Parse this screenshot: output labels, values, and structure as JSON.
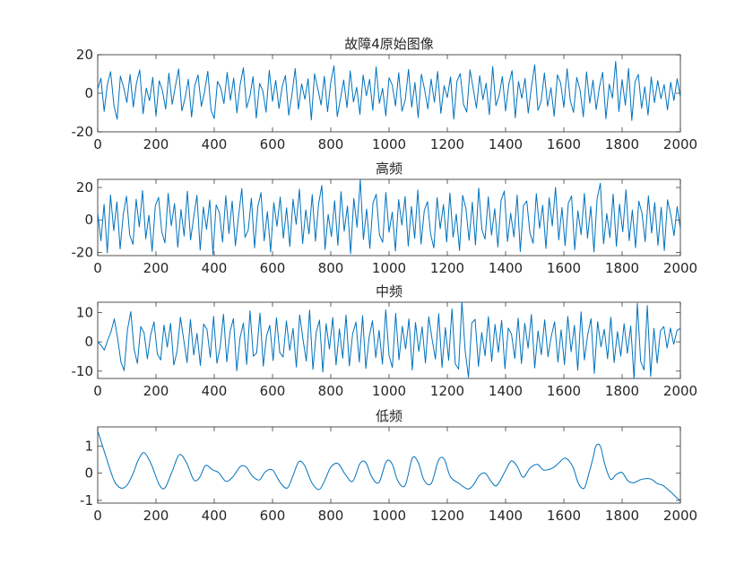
{
  "colors": {
    "line": "#0072BD",
    "axes": "#262626",
    "background": "#ffffff"
  },
  "chart_data": [
    {
      "type": "line",
      "title": "故障4原始图像",
      "xlabel": "",
      "ylabel": "",
      "xlim": [
        0,
        2000
      ],
      "ylim": [
        -20,
        20
      ],
      "xticks": [
        0,
        200,
        400,
        600,
        800,
        1000,
        1200,
        1400,
        1600,
        1800,
        2000
      ],
      "yticks": [
        -20,
        0,
        20
      ],
      "xtick_labels": [
        "0",
        "200",
        "400",
        "600",
        "800",
        "1000",
        "1200",
        "1400",
        "1600",
        "1800",
        "2000"
      ],
      "ytick_labels": [
        "-20",
        "0",
        "20"
      ],
      "grid": false,
      "series": [
        {
          "x_range": [
            0,
            2000
          ],
          "y": [
            2.1,
            7.8,
            -9.4,
            4.6,
            11.2,
            -6.3,
            -13.5,
            8.9,
            3.2,
            -4.8,
            9.7,
            -7.1,
            5.4,
            12.1,
            -10.6,
            2.7,
            -3.9,
            8.3,
            -11.8,
            6.5,
            1.4,
            -8.2,
            10.4,
            -5.7,
            3.8,
            12.6,
            -9.1,
            -2.4,
            7.3,
            -12.3,
            4.1,
            9.5,
            -6.8,
            0.9,
            11.4,
            -8.7,
            -13.1,
            6.2,
            2.8,
            -5.3,
            10.8,
            -3.6,
            7.9,
            -10.2,
            4.4,
            13.2,
            -7.6,
            -1.8,
            8.6,
            -12.9,
            5.1,
            1.2,
            -9.8,
            11.9,
            -4.2,
            6.7,
            -7.9,
            3.5,
            9.2,
            -11.4,
            -0.6,
            12.8,
            -8.3,
            4.9,
            -3.1,
            7.6,
            -13.8,
            10.1,
            2.3,
            -6.1,
            8.8,
            -9.6,
            5.8,
            14.3,
            -12.1,
            -2.9,
            6.9,
            -7.4,
            11.6,
            -4.5,
            3.1,
            -10.9,
            9.4,
            -1.3,
            7.2,
            -8.8,
            13.7,
            -5.2,
            2.6,
            -11.7,
            8.1,
            4.3,
            -6.6,
            10.7,
            -9.3,
            -3.4,
            12.4,
            -7.2,
            5.6,
            -12.6,
            9.9,
            1.8,
            -8.1,
            7.4,
            -4.7,
            11.3,
            -10.4,
            3.9,
            -2.2,
            8.5,
            -13.4,
            6.3,
            10.2,
            -5.8,
            -9.7,
            12.2,
            2.4,
            -7.7,
            9.1,
            -3.3,
            5.2,
            -11.1,
            13.9,
            -6.4,
            -1.1,
            8.7,
            -9.2,
            4.8,
            11.8,
            -12.7,
            6.1,
            -2.6,
            7.7,
            -10.3,
            3.6,
            14.8,
            -8.9,
            -4.1,
            10.5,
            -6.7,
            2.9,
            -11.9,
            9.6,
            5.3,
            -7.3,
            12.7,
            -3.8,
            -9.9,
            8.2,
            1.6,
            -12.2,
            11.1,
            -5.1,
            6.8,
            -8.4,
            3.3,
            10.9,
            -13.2,
            4.7,
            -2.5,
            16.5,
            -9.5,
            7.1,
            -6.2,
            12.9,
            -14.1,
            5.9,
            9.8,
            -7.8,
            3.4,
            -11.3,
            8.4,
            -4.9,
            6.6,
            -2.8,
            4.5,
            -8.6,
            5.7,
            -3.7,
            7.5,
            -1.9
          ]
        }
      ]
    },
    {
      "type": "line",
      "title": "高频",
      "xlabel": "",
      "ylabel": "",
      "xlim": [
        0,
        2000
      ],
      "ylim": [
        -22,
        25
      ],
      "xticks": [
        0,
        200,
        400,
        600,
        800,
        1000,
        1200,
        1400,
        1600,
        1800,
        2000
      ],
      "yticks": [
        -20,
        0,
        20
      ],
      "xtick_labels": [
        "0",
        "200",
        "400",
        "600",
        "800",
        "1000",
        "1200",
        "1400",
        "1600",
        "1800",
        "2000"
      ],
      "ytick_labels": [
        "-20",
        "0",
        "20"
      ],
      "grid": false,
      "series": [
        {
          "x_range": [
            0,
            2000
          ],
          "y": [
            4.2,
            -12.8,
            9.6,
            -20.3,
            15.4,
            -6.7,
            11.2,
            -17.9,
            3.8,
            14.6,
            -9.2,
            -15.1,
            12.7,
            -4.3,
            18.1,
            -11.6,
            2.9,
            -19.4,
            8.8,
            13.9,
            -7.1,
            -14.2,
            16.3,
            -3.6,
            10.1,
            -16.8,
            6.4,
            -9.9,
            17.7,
            -12.4,
            1.7,
            15.2,
            -18.6,
            7.9,
            -5.8,
            12.3,
            -21.2,
            9.3,
            4.6,
            -13.7,
            14.9,
            -8.4,
            11.6,
            -15.9,
            2.2,
            19.3,
            -10.8,
            -6.3,
            13.4,
            -17.2,
            8.1,
            16.8,
            -12.9,
            5.1,
            -19.7,
            10.6,
            -3.9,
            14.1,
            -11.3,
            7.4,
            -16.4,
            12.8,
            -2.7,
            18.9,
            -14.6,
            6.2,
            -8.7,
            15.6,
            -13.1,
            9.8,
            21.3,
            -18.2,
            3.4,
            -10.2,
            11.9,
            -15.7,
            17.4,
            -6.9,
            8.6,
            -20.8,
            13.3,
            -4.5,
            24.8,
            -12.1,
            6.7,
            -17.5,
            10.4,
            15.8,
            -9.3,
            -13.8,
            16.9,
            -7.6,
            4.9,
            -19.1,
            12.5,
            -3.2,
            14.4,
            -16.1,
            8.3,
            -11.4,
            18.4,
            -14.9,
            5.8,
            11.3,
            -8.9,
            -17.3,
            13.7,
            -5.4,
            9.5,
            -13.6,
            16.6,
            -10.7,
            3.6,
            -18.8,
            15.1,
            7.2,
            -12.6,
            10.9,
            -15.4,
            19.6,
            -6.1,
            -11.8,
            14.2,
            -9.4,
            6.9,
            -16.7,
            12.1,
            17.8,
            -13.3,
            4.1,
            -10.5,
            15.3,
            -19.5,
            8.9,
            11.7,
            -7.8,
            -14.4,
            16.2,
            -5.2,
            9.1,
            -17.6,
            13.6,
            -3.8,
            20.1,
            -12.3,
            7.6,
            -15.8,
            10.3,
            14.7,
            -18.4,
            5.5,
            -9.1,
            16.4,
            -11.2,
            8.4,
            -19.8,
            13.1,
            22.7,
            -14.7,
            3.9,
            -10.9,
            15.9,
            -16.3,
            9.7,
            -7.3,
            18.6,
            -12.8,
            6.1,
            -17.1,
            11.5,
            4.3,
            -13.4,
            14.8,
            -8.1,
            10.7,
            -15.6,
            7.8,
            -18.9,
            12.4,
            3.1,
            -9.7,
            8.2,
            -5.6
          ]
        }
      ]
    },
    {
      "type": "line",
      "title": "中频",
      "xlabel": "",
      "ylabel": "",
      "xlim": [
        0,
        2000
      ],
      "ylim": [
        -12.5,
        13.5
      ],
      "xticks": [
        0,
        200,
        400,
        600,
        800,
        1000,
        1200,
        1400,
        1600,
        1800,
        2000
      ],
      "yticks": [
        -10,
        0,
        10
      ],
      "xtick_labels": [
        "0",
        "200",
        "400",
        "600",
        "800",
        "1000",
        "1200",
        "1400",
        "1600",
        "1800",
        "2000"
      ],
      "ytick_labels": [
        "-10",
        "0",
        "10"
      ],
      "grid": false,
      "series": [
        {
          "x_range": [
            0,
            2000
          ],
          "y": [
            0,
            -1.2,
            -2.8,
            0.5,
            3.4,
            7.8,
            1.2,
            -6.9,
            -9.8,
            4.1,
            10.3,
            -2.6,
            -7.4,
            5.2,
            3.1,
            -5.8,
            2.4,
            6.8,
            -4.1,
            -6.2,
            5.7,
            -1.8,
            6.3,
            -7.9,
            -3.2,
            8.4,
            0.6,
            -7.1,
            7.6,
            -4.5,
            2.9,
            -8.1,
            6.1,
            4.2,
            -5.3,
            8.7,
            -7.3,
            -1.9,
            9.4,
            -6.8,
            3.6,
            7.9,
            -9.9,
            1.4,
            6.4,
            -7.7,
            10.6,
            -4.9,
            -3.8,
            9.8,
            -8.3,
            2.1,
            5.6,
            -6.4,
            8.2,
            -3.7,
            -5.2,
            7.1,
            -2.9,
            4.6,
            -8.6,
            9.2,
            0.8,
            -6.6,
            10.8,
            -9.4,
            3.3,
            7.4,
            -10.3,
            6.2,
            -2.5,
            8.3,
            -7.9,
            4.4,
            -5.6,
            9.1,
            -8.2,
            2.8,
            6.7,
            -6.9,
            8.9,
            -9.1,
            1.6,
            7.2,
            -5.4,
            3.9,
            -7.6,
            10.9,
            -4.6,
            -8.8,
            9.7,
            -6.1,
            5.3,
            -2.4,
            7.8,
            -9.6,
            6.6,
            -3.3,
            5.1,
            -7.2,
            8.5,
            0.9,
            -5.9,
            9.6,
            -8.7,
            4.8,
            -6.3,
            11.2,
            -7.5,
            -9.3,
            13.8,
            -3.1,
            -12.1,
            6.4,
            7.7,
            -8.4,
            3.2,
            -4.8,
            8.6,
            -6.7,
            5.9,
            -3.6,
            7.3,
            -9.2,
            4.7,
            2.6,
            -5.7,
            8.1,
            -7.4,
            6.3,
            -2.2,
            9.3,
            -8.9,
            3.7,
            -4.4,
            7.5,
            -5.1,
            1.9,
            6.8,
            -6.9,
            4.1,
            -7.8,
            8.7,
            -3.4,
            5.6,
            -9.7,
            10.2,
            -6.2,
            2.4,
            7.9,
            -10.8,
            6.9,
            -1.7,
            4.3,
            -5.8,
            8.4,
            -7.1,
            3.5,
            -4.9,
            6.2,
            -3.9,
            5.4,
            -12.6,
            13.1,
            -6.7,
            -9.6,
            12.4,
            -11.8,
            4.6,
            -7.3,
            3.8,
            5.2,
            -2.1,
            4.7,
            -0.8,
            3.9,
            4.6
          ]
        }
      ]
    },
    {
      "type": "line",
      "title": "低频",
      "xlabel": "",
      "ylabel": "",
      "xlim": [
        0,
        2000
      ],
      "ylim": [
        -1.1,
        1.7
      ],
      "xticks": [
        0,
        200,
        400,
        600,
        800,
        1000,
        1200,
        1400,
        1600,
        1800,
        2000
      ],
      "yticks": [
        -1,
        0,
        1
      ],
      "xtick_labels": [
        "0",
        "200",
        "400",
        "600",
        "800",
        "1000",
        "1200",
        "1400",
        "1600",
        "1800",
        "2000"
      ],
      "ytick_labels": [
        "-1",
        "0",
        "1"
      ],
      "grid": false,
      "series": [
        {
          "x": [
            0,
            15,
            30,
            45,
            60,
            80,
            100,
            120,
            140,
            160,
            185,
            210,
            230,
            255,
            280,
            305,
            330,
            350,
            370,
            395,
            415,
            440,
            465,
            490,
            510,
            530,
            555,
            575,
            600,
            625,
            650,
            670,
            690,
            710,
            735,
            760,
            780,
            800,
            825,
            850,
            875,
            900,
            920,
            940,
            965,
            990,
            1010,
            1030,
            1055,
            1080,
            1100,
            1120,
            1145,
            1170,
            1190,
            1210,
            1240,
            1270,
            1290,
            1310,
            1330,
            1350,
            1370,
            1400,
            1420,
            1440,
            1460,
            1485,
            1510,
            1530,
            1560,
            1580,
            1605,
            1630,
            1650,
            1670,
            1685,
            1700,
            1710,
            1725,
            1740,
            1760,
            1780,
            1800,
            1820,
            1840,
            1860,
            1880,
            1900,
            1920,
            1940,
            1955,
            1970,
            1985,
            2000
          ],
          "y": [
            1.55,
            1.05,
            0.55,
            0.05,
            -0.35,
            -0.55,
            -0.45,
            -0.05,
            0.5,
            0.75,
            0.3,
            -0.4,
            -0.55,
            0.05,
            0.68,
            0.38,
            -0.25,
            -0.15,
            0.28,
            0.12,
            0.02,
            -0.3,
            -0.12,
            0.25,
            0.22,
            -0.1,
            -0.25,
            0.05,
            0.12,
            -0.32,
            -0.55,
            -0.1,
            0.42,
            0.28,
            -0.35,
            -0.6,
            -0.25,
            0.22,
            0.35,
            -0.05,
            -0.3,
            0.35,
            0.4,
            -0.12,
            -0.35,
            0.42,
            0.35,
            -0.28,
            -0.45,
            0.55,
            0.4,
            -0.25,
            -0.38,
            0.48,
            0.5,
            -0.12,
            -0.38,
            -0.58,
            -0.42,
            -0.08,
            0.0,
            -0.3,
            -0.45,
            0.1,
            0.45,
            0.25,
            -0.15,
            0.2,
            0.32,
            0.12,
            0.18,
            0.35,
            0.55,
            0.25,
            -0.38,
            -0.55,
            -0.05,
            0.55,
            1.0,
            1.0,
            0.35,
            -0.22,
            -0.05,
            0.02,
            -0.28,
            -0.35,
            -0.25,
            -0.2,
            -0.22,
            -0.38,
            -0.45,
            -0.58,
            -0.72,
            -0.88,
            -1.02
          ]
        }
      ]
    }
  ]
}
